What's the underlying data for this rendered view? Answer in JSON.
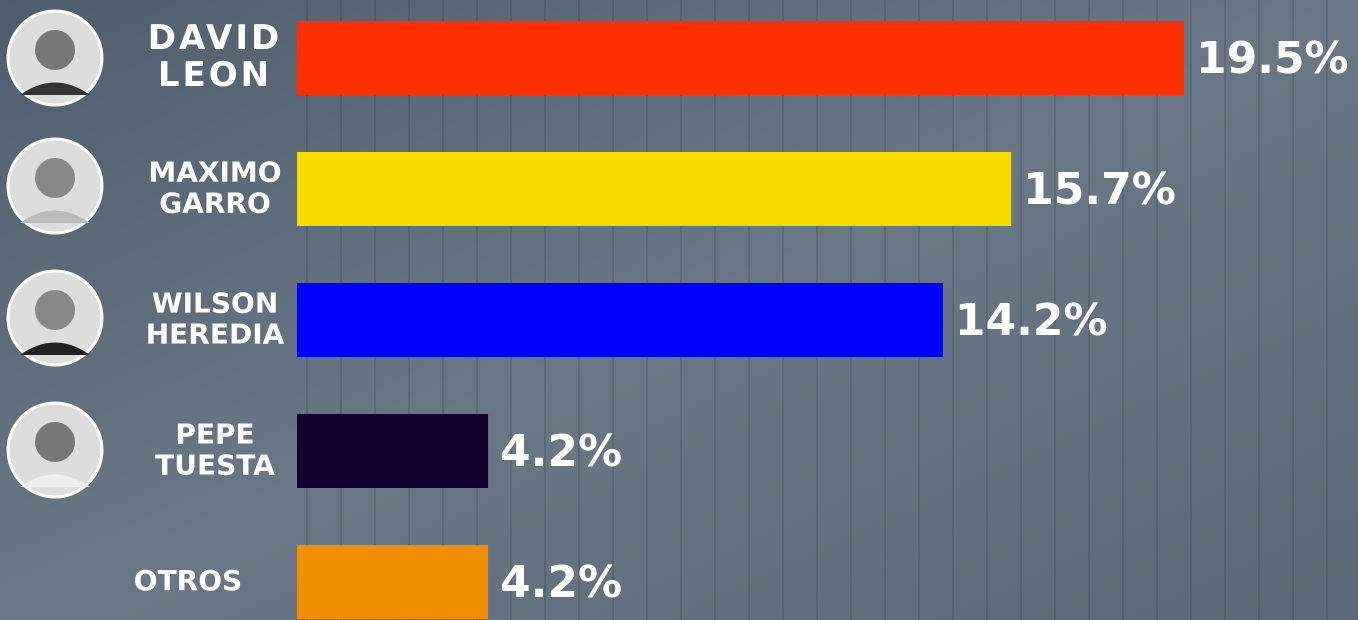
{
  "chart_data": {
    "type": "bar",
    "orientation": "horizontal",
    "categories": [
      [
        "DAVID",
        "LEON"
      ],
      [
        "MAXIMO",
        "GARRO"
      ],
      [
        "WILSON",
        "HEREDIA"
      ],
      [
        "PEPE",
        "TUESTA"
      ],
      [
        "OTROS"
      ]
    ],
    "values": [
      19.5,
      15.7,
      14.2,
      4.2,
      4.2
    ],
    "value_labels": [
      "19.5%",
      "15.7%",
      "14.2%",
      "4.2%",
      "4.2%"
    ],
    "colors": [
      "#ff3000",
      "#fadb00",
      "#0000ff",
      "#14002e",
      "#f09000"
    ]
  }
}
